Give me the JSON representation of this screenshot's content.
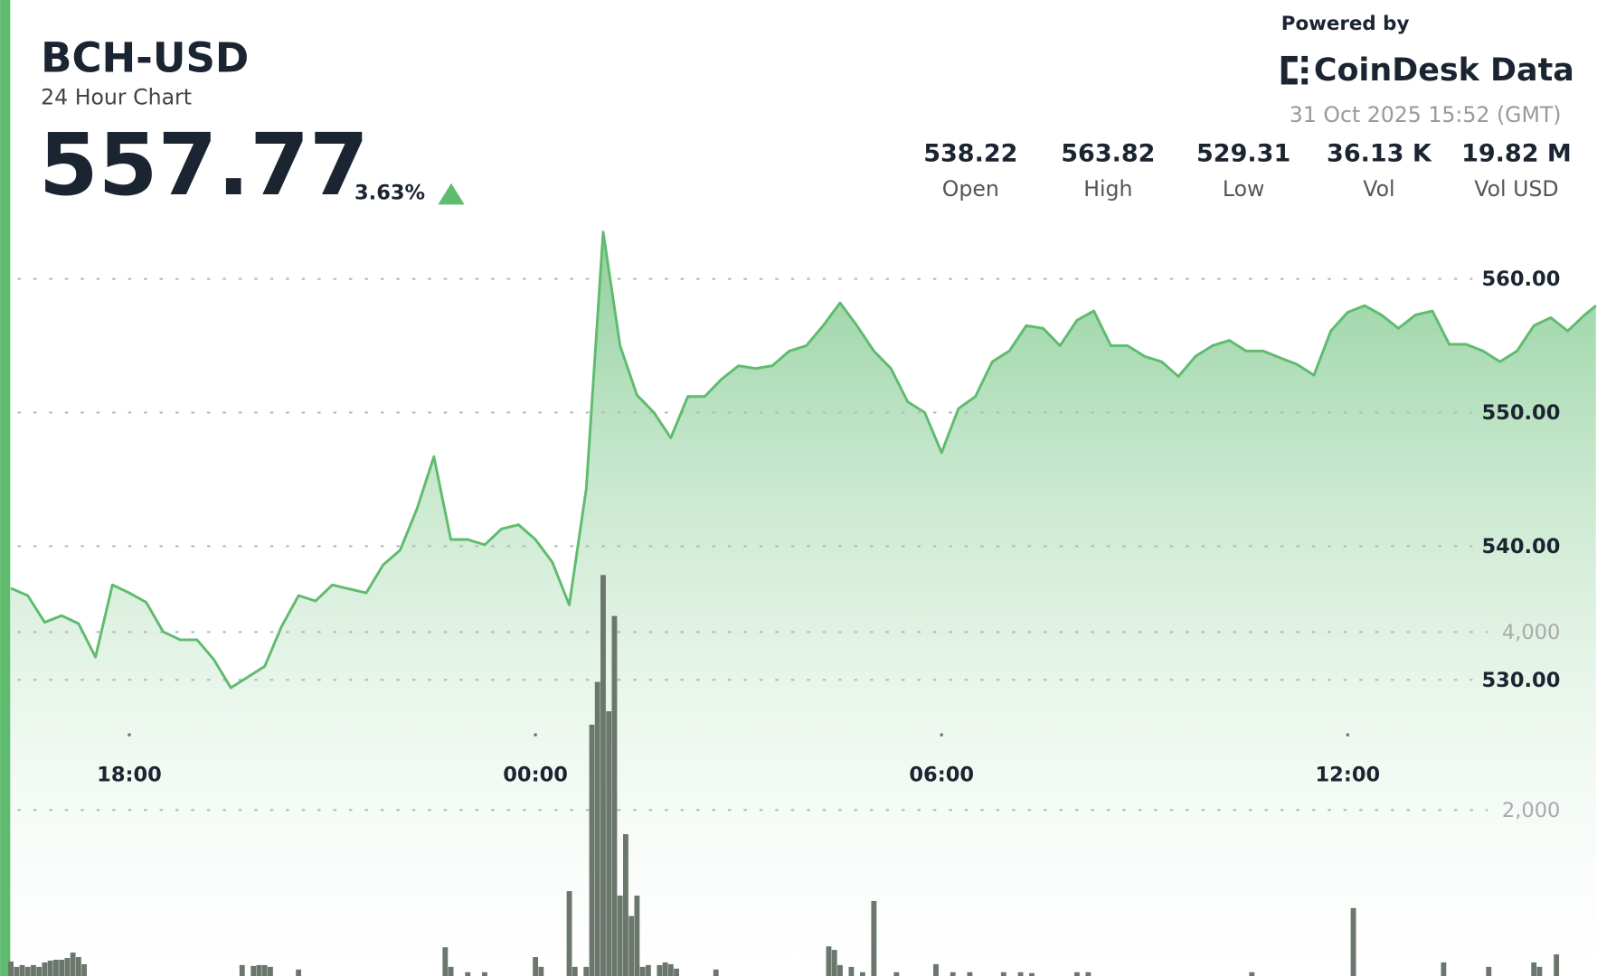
{
  "header": {
    "title": "BCH-USD",
    "subtitle": "24 Hour Chart",
    "price": "557.77",
    "change": "3.63%",
    "powered_by": "Powered by",
    "brand": "CoinDesk Data",
    "timestamp": "31 Oct 2025 15:52 (GMT)",
    "stats": [
      {
        "value": "538.22",
        "label": "Open"
      },
      {
        "value": "563.82",
        "label": "High"
      },
      {
        "value": "529.31",
        "label": "Low"
      },
      {
        "value": "36.13 K",
        "label": "Vol"
      },
      {
        "value": "19.82 M",
        "label": "Vol USD"
      }
    ]
  },
  "chart_data": {
    "type": "area",
    "color": "#5fbb6e",
    "grid": true,
    "x": [
      "16:15",
      "16:30",
      "16:45",
      "17:00",
      "17:15",
      "17:30",
      "17:45",
      "18:00",
      "18:15",
      "18:30",
      "18:45",
      "19:00",
      "19:15",
      "19:30",
      "19:45",
      "20:00",
      "20:15",
      "20:30",
      "20:45",
      "21:00",
      "21:15",
      "21:30",
      "21:45",
      "22:00",
      "22:15",
      "22:30",
      "22:45",
      "23:00",
      "23:15",
      "23:30",
      "23:45",
      "00:00",
      "00:15",
      "00:30",
      "00:45",
      "01:00",
      "01:15",
      "01:30",
      "01:45",
      "02:00",
      "02:15",
      "02:30",
      "02:45",
      "03:00",
      "03:15",
      "03:30",
      "03:45",
      "04:00",
      "04:15",
      "04:30",
      "04:45",
      "05:00",
      "05:15",
      "05:30",
      "05:45",
      "06:00",
      "06:15",
      "06:30",
      "06:45",
      "07:00",
      "07:15",
      "07:30",
      "07:45",
      "08:00",
      "08:15",
      "08:30",
      "08:45",
      "09:00",
      "09:15",
      "09:30",
      "09:45",
      "10:00",
      "10:15",
      "10:30",
      "10:45",
      "11:00",
      "11:15",
      "11:30",
      "11:45",
      "12:00",
      "12:15",
      "12:30",
      "12:45",
      "13:00",
      "13:15",
      "13:30",
      "13:45",
      "14:00",
      "14:15",
      "14:30",
      "14:45",
      "15:00",
      "15:15",
      "15:30",
      "15:40"
    ],
    "values": [
      536.85,
      536.3,
      534.3,
      534.8,
      534.2,
      531.7,
      537.1,
      536.5,
      535.8,
      533.6,
      533.0,
      533.0,
      531.5,
      529.4,
      530.2,
      531.0,
      534.0,
      536.3,
      535.9,
      537.1,
      536.8,
      536.5,
      538.6,
      539.7,
      542.8,
      546.7,
      540.5,
      540.5,
      540.1,
      541.3,
      541.6,
      540.5,
      538.8,
      535.6,
      544.3,
      563.5,
      555.0,
      551.3,
      550.0,
      548.1,
      551.2,
      551.2,
      552.5,
      553.5,
      553.3,
      553.5,
      554.6,
      555.0,
      556.5,
      558.2,
      556.5,
      554.6,
      553.3,
      550.8,
      550.0,
      547.0,
      550.3,
      551.2,
      553.8,
      554.6,
      556.5,
      556.3,
      555.0,
      556.9,
      557.6,
      555.0,
      555.0,
      554.2,
      553.8,
      552.7,
      554.2,
      555.0,
      555.4,
      554.6,
      554.6,
      554.1,
      553.6,
      552.8,
      556.1,
      557.5,
      558.0,
      557.3,
      556.3,
      557.3,
      557.6,
      555.1,
      555.1,
      554.6,
      553.8,
      554.6,
      556.5,
      557.1,
      556.1,
      557.3,
      558.0
    ],
    "xlim": [
      "16:15",
      "15:40"
    ],
    "xticks": [
      "18:00",
      "00:00",
      "06:00",
      "12:00"
    ],
    "ylim": [
      525,
      565
    ],
    "yticks": [
      {
        "value": 530,
        "label": "530.00"
      },
      {
        "value": 540,
        "label": "540.00"
      },
      {
        "value": 550,
        "label": "550.00"
      },
      {
        "value": 560,
        "label": "560.00"
      }
    ],
    "volume": {
      "color": "#6b776c",
      "axis": "y2",
      "x": [
        "16:15",
        "16:20",
        "16:25",
        "16:30",
        "16:35",
        "16:40",
        "16:45",
        "16:50",
        "16:55",
        "17:00",
        "17:05",
        "17:10",
        "17:15",
        "17:20",
        "19:40",
        "19:50",
        "19:55",
        "20:00",
        "20:05",
        "20:30",
        "22:40",
        "22:45",
        "23:00",
        "23:15",
        "00:00",
        "00:05",
        "00:30",
        "00:35",
        "00:45",
        "00:50",
        "00:55",
        "01:00",
        "01:05",
        "01:10",
        "01:15",
        "01:20",
        "01:25",
        "01:30",
        "01:35",
        "01:40",
        "01:50",
        "01:55",
        "02:00",
        "02:05",
        "02:40",
        "04:20",
        "04:25",
        "04:30",
        "04:40",
        "04:50",
        "05:00",
        "05:20",
        "05:55",
        "06:10",
        "06:25",
        "06:55",
        "07:10",
        "07:20",
        "08:00",
        "08:10",
        "10:35",
        "12:05",
        "13:25",
        "14:05",
        "14:45",
        "14:50",
        "15:05"
      ],
      "values": [
        300,
        240,
        260,
        240,
        260,
        240,
        290,
        310,
        320,
        320,
        340,
        400,
        350,
        270,
        260,
        250,
        260,
        260,
        240,
        210,
        460,
        240,
        180,
        180,
        350,
        240,
        1090,
        240,
        240,
        2960,
        3440,
        4640,
        3110,
        4180,
        1040,
        1730,
        810,
        1040,
        240,
        260,
        260,
        290,
        270,
        220,
        210,
        470,
        430,
        260,
        240,
        180,
        980,
        180,
        270,
        180,
        180,
        180,
        180,
        170,
        180,
        180,
        180,
        900,
        290,
        240,
        290,
        240,
        380
      ],
      "y2lim": [
        0,
        11000
      ],
      "y2ticks": [
        {
          "value": 2000,
          "label": "2,000"
        },
        {
          "value": 4000,
          "label": "4,000"
        }
      ]
    }
  }
}
